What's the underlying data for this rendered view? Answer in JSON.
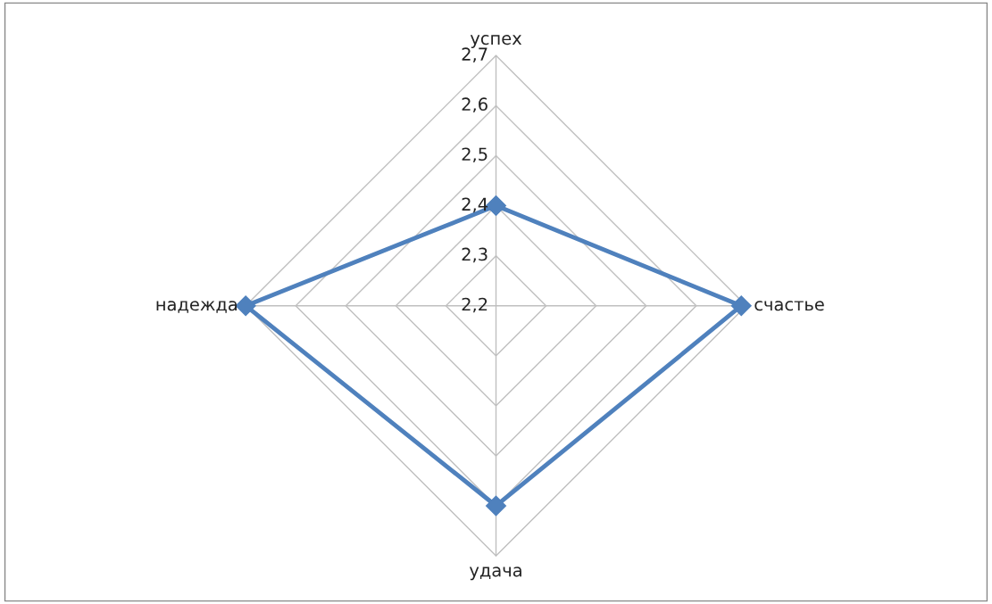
{
  "chart_data": {
    "type": "radar",
    "categories": [
      "успех",
      "счастье",
      "удача",
      "надежда"
    ],
    "series": [
      {
        "color": "#4f81bd",
        "values": [
          2.4,
          2.69,
          2.6,
          2.7
        ]
      }
    ],
    "ylim": [
      2.2,
      2.7
    ],
    "yticks": [
      {
        "value": 2.2,
        "label": "2,2"
      },
      {
        "value": 2.3,
        "label": "2,3"
      },
      {
        "value": 2.4,
        "label": "2,4"
      },
      {
        "value": 2.5,
        "label": "2,5"
      },
      {
        "value": 2.6,
        "label": "2,6"
      },
      {
        "value": 2.7,
        "label": "2,7"
      }
    ],
    "grid": true,
    "marker": "diamond",
    "line_style": "solid",
    "legend": false
  }
}
